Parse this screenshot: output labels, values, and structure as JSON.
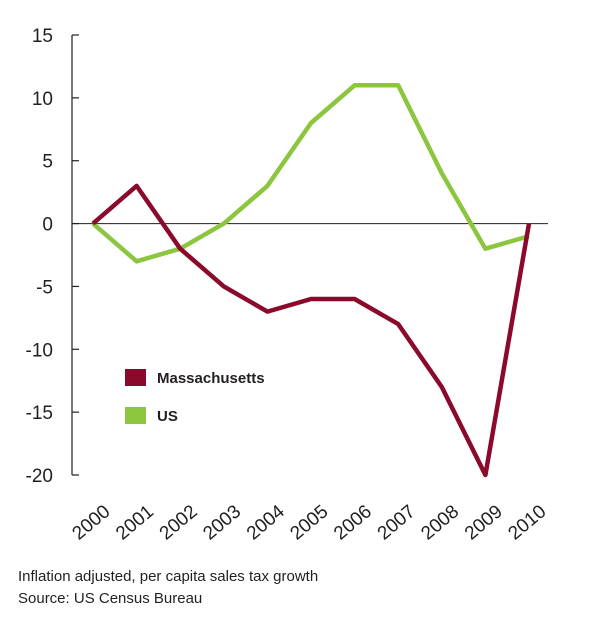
{
  "chart_data": {
    "type": "line",
    "categories": [
      "2000",
      "2001",
      "2002",
      "2003",
      "2004",
      "2005",
      "2006",
      "2007",
      "2008",
      "2009",
      "2010"
    ],
    "series": [
      {
        "name": "Massachusetts",
        "color": "#8b0a2c",
        "values": [
          0,
          3,
          -2,
          -5,
          -7,
          -6,
          -6,
          -8,
          -13,
          -20,
          0
        ]
      },
      {
        "name": "US",
        "color": "#8cc63f",
        "values": [
          0,
          -3,
          -2,
          0,
          3,
          8,
          11,
          11,
          4,
          -2,
          -1
        ]
      }
    ],
    "ylim": [
      -20,
      15
    ],
    "yticks": [
      15,
      10,
      5,
      0,
      -5,
      -10,
      -15,
      -20
    ],
    "legend_position": "bottom-left inside plot",
    "zero_line": true
  },
  "notes": {
    "line1": "Inflation adjusted, per capita sales tax growth",
    "line2": "Source: US Census Bureau"
  }
}
